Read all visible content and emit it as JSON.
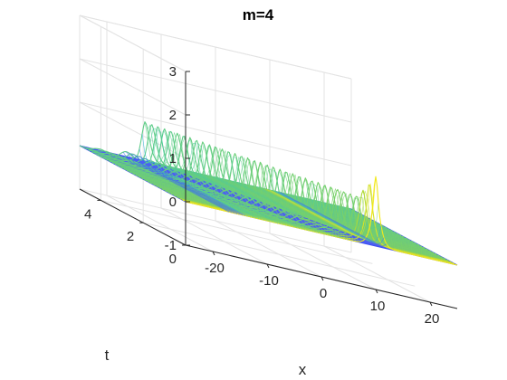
{
  "chart_data": {
    "type": "surface-mesh",
    "title": "m=4",
    "xlabel": "x",
    "ylabel": "t",
    "zlabel": "",
    "xlim": [
      -25,
      25
    ],
    "ylim": [
      0,
      5
    ],
    "zlim": [
      -1,
      3
    ],
    "xticks": [
      -20,
      -10,
      0,
      10,
      20
    ],
    "yticks": [
      0,
      2,
      4
    ],
    "zticks": [
      -1,
      0,
      1,
      2,
      3
    ],
    "xtick_labels": [
      "-20",
      "-10",
      "0",
      "10",
      "20"
    ],
    "ytick_labels": [
      "0",
      "2",
      "4"
    ],
    "ztick_labels": [
      "-1",
      "0",
      "1",
      "2",
      "3"
    ],
    "grid": true,
    "box": "open",
    "colormap": [
      "#3d4ef2",
      "#3a86f5",
      "#21c4d2",
      "#9fd63c",
      "#f2e81c"
    ],
    "wave_profile": {
      "description": "soliton-like peak travelling in x as t increases with oscillatory tail on the left",
      "peak_amplitude_start": 1.0,
      "peak_amplitude_end": 0.9,
      "peak_x_start": 10,
      "peak_x_end": -13,
      "spike_max": 1.0
    },
    "mesh_lines": 36
  }
}
